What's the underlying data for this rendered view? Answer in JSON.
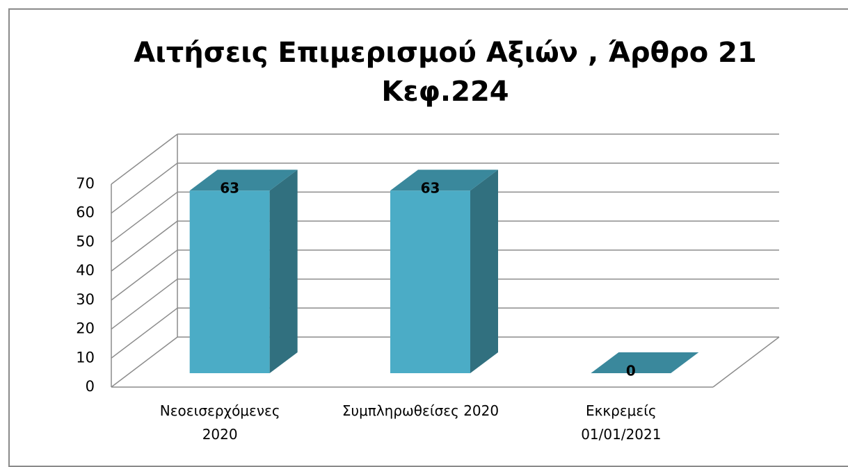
{
  "chart_data": {
    "type": "bar3d",
    "title": "Αιτήσεις Επιμερισμού Αξιών , Άρθρο 21 Κεφ.224",
    "categories": [
      "Νεοεισερχόμενες\n2020",
      "Συμπληρωθείσες 2020",
      "Εκκρεμείς\n01/01/2021"
    ],
    "values": [
      63,
      63,
      0
    ],
    "color": "#4bacc6",
    "ylim": [
      0,
      70
    ],
    "yticks": [
      0,
      10,
      20,
      30,
      40,
      50,
      60,
      70
    ],
    "grid": true
  }
}
